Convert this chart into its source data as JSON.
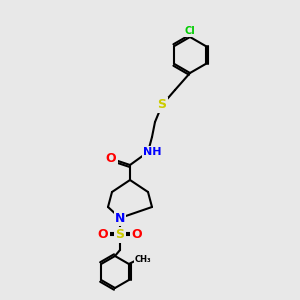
{
  "bg_color": "#e8e8e8",
  "bond_color": "#000000",
  "bond_width": 1.5,
  "atom_colors": {
    "Cl": "#00cc00",
    "S": "#cccc00",
    "N": "#0000ff",
    "O": "#ff0000",
    "C": "#000000",
    "H": "#000000"
  },
  "title": ""
}
